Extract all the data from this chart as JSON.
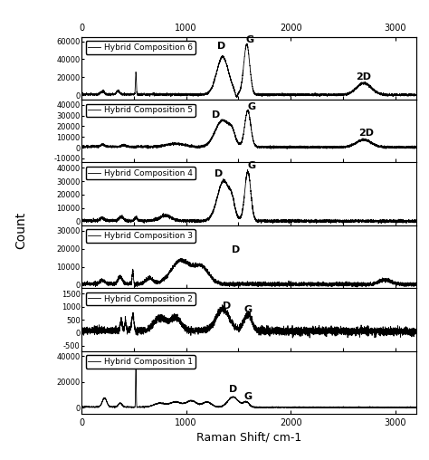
{
  "xlabel": "Raman Shift/ cm-1",
  "ylabel": "Count",
  "x_range": [
    0,
    3200
  ],
  "subplots": [
    {
      "label": "Hybrid Composition 6",
      "yticks": [
        0,
        20000,
        40000,
        60000
      ],
      "ylim": [
        -5000,
        65000
      ],
      "peak_labels": [
        [
          "D",
          1340,
          50000
        ],
        [
          "G",
          1610,
          57000
        ],
        [
          "2D",
          2700,
          15000
        ]
      ],
      "comp_num": 6
    },
    {
      "label": "Hybrid Composition 5",
      "yticks": [
        -10000,
        0,
        10000,
        20000,
        30000,
        40000
      ],
      "ylim": [
        -14000,
        45000
      ],
      "peak_labels": [
        [
          "D",
          1290,
          26000
        ],
        [
          "G",
          1630,
          34000
        ],
        [
          "2D",
          2720,
          9000
        ]
      ],
      "comp_num": 5
    },
    {
      "label": "Hybrid Composition 4",
      "yticks": [
        0,
        10000,
        20000,
        30000,
        40000
      ],
      "ylim": [
        -3000,
        44000
      ],
      "peak_labels": [
        [
          "D",
          1310,
          32000
        ],
        [
          "G",
          1630,
          38000
        ]
      ],
      "comp_num": 4
    },
    {
      "label": "Hybrid Composition 3",
      "yticks": [
        0,
        10000,
        20000,
        30000
      ],
      "ylim": [
        -2000,
        33000
      ],
      "peak_labels": [
        [
          "D",
          1480,
          17000
        ]
      ],
      "comp_num": 3
    },
    {
      "label": "Hybrid Composition 2",
      "yticks": [
        -500,
        0,
        500,
        1000,
        1500
      ],
      "ylim": [
        -700,
        1700
      ],
      "peak_labels": [
        [
          "D",
          1390,
          860
        ],
        [
          "G",
          1590,
          700
        ]
      ],
      "comp_num": 2
    },
    {
      "label": "Hybrid Composition 1",
      "yticks": [
        0,
        20000,
        40000
      ],
      "ylim": [
        -5000,
        44000
      ],
      "peak_labels": [
        [
          "D",
          1450,
          11000
        ],
        [
          "G",
          1590,
          5000
        ]
      ],
      "comp_num": 1
    }
  ],
  "line_color": "black",
  "bg_color": "white",
  "figsize": [
    4.74,
    5.08
  ],
  "dpi": 100
}
